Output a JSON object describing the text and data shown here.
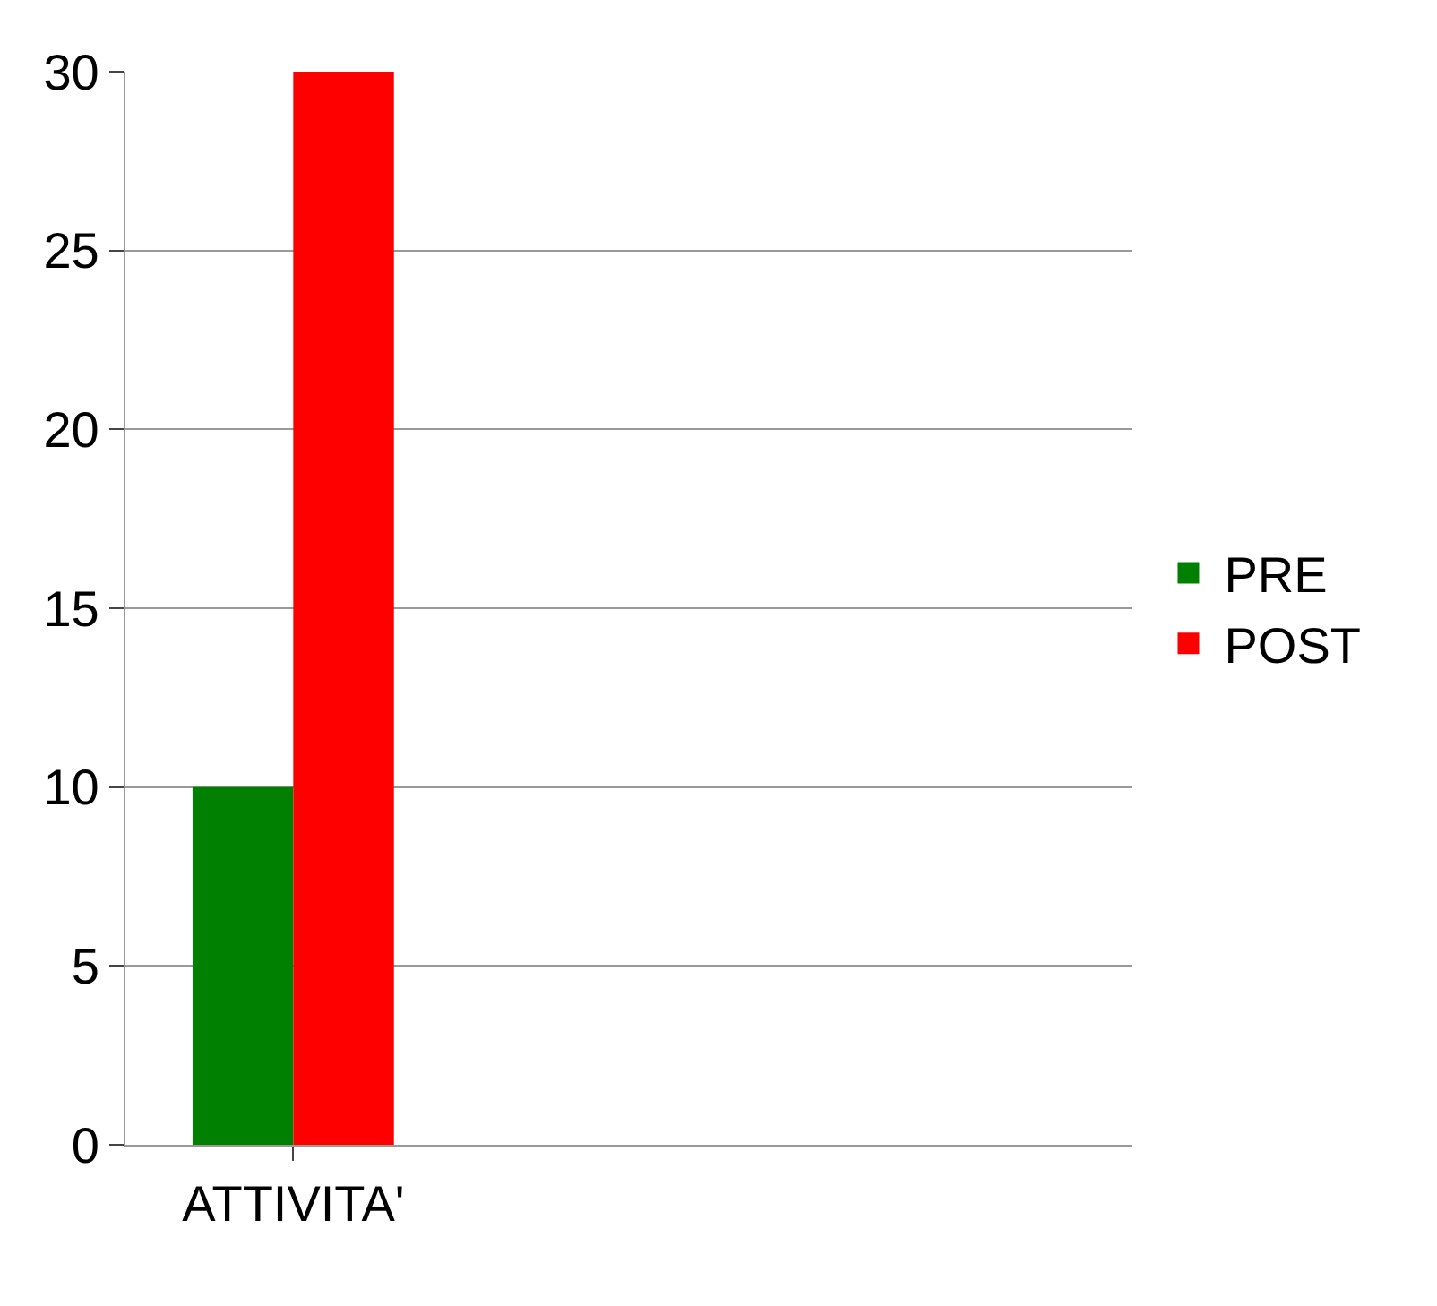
{
  "chart_data": {
    "type": "bar",
    "categories": [
      "ATTIVITA'",
      null,
      null
    ],
    "series": [
      {
        "name": "PRE",
        "color": "#008000",
        "values": [
          10,
          null,
          null
        ]
      },
      {
        "name": "POST",
        "color": "#ff0000",
        "values": [
          30,
          null,
          null
        ]
      }
    ],
    "ylim": [
      0,
      30
    ],
    "yticks": [
      0,
      5,
      10,
      15,
      20,
      25,
      30
    ],
    "grid": "y",
    "legend": "right"
  }
}
